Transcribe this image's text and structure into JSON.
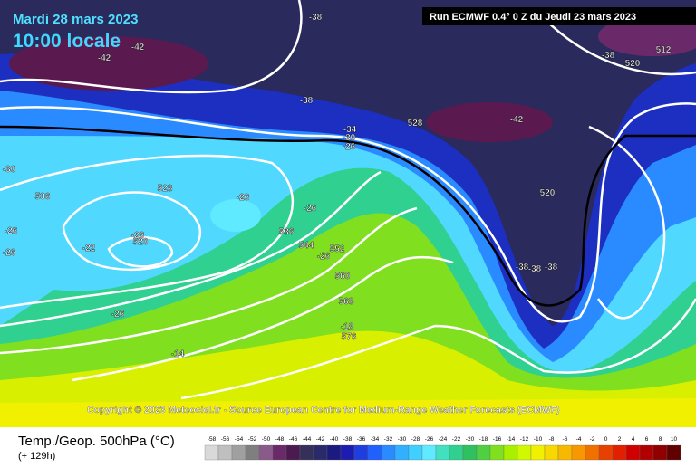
{
  "header": {
    "date": "Mardi 28 mars 2023",
    "time": "10:00 locale",
    "run": "Run ECMWF 0.4° 0 Z du Jeudi 23 mars 2023"
  },
  "copyright": "Copyright © 2023 Meteociel.fr - Source European Centre for Medium-Range Weather Forecasts (ECMWF)",
  "legend": {
    "title": "Temp./Geop. 500hPa (°C)",
    "lead": "(+ 129h)",
    "ticks": [
      -58,
      -56,
      -54,
      -52,
      -50,
      -48,
      -46,
      -44,
      -42,
      -40,
      -38,
      -36,
      -34,
      -32,
      -30,
      -28,
      -26,
      -24,
      -22,
      -20,
      -18,
      -16,
      -14,
      -12,
      -10,
      -8,
      -6,
      -4,
      -2,
      0,
      2,
      4,
      6,
      8,
      10
    ],
    "colors": [
      "#d9d9d9",
      "#bfbfbf",
      "#a0a0a0",
      "#7f7f7f",
      "#8a5a8a",
      "#6a2a6a",
      "#4a1a50",
      "#35305a",
      "#2a2a6a",
      "#1a1a80",
      "#1c1cb0",
      "#1e3ee0",
      "#2060ff",
      "#2a8aff",
      "#30b0ff",
      "#40d0ff",
      "#60eaff",
      "#40e0c0",
      "#30d090",
      "#30c060",
      "#50d040",
      "#80e020",
      "#a8f000",
      "#d0f800",
      "#f0f000",
      "#f8d800",
      "#f8b800",
      "#f89800",
      "#f07000",
      "#e84000",
      "#e02000",
      "#d00000",
      "#b00000",
      "#900000",
      "#600000"
    ]
  },
  "contour_labels": [
    "-38",
    "-42",
    "-42",
    "-38",
    "528",
    "-42",
    "520",
    "512",
    "-38",
    "-34",
    "-30",
    "-26",
    "-30",
    "536",
    "528",
    "-26",
    "-26",
    "520",
    "-26",
    "-22",
    "-26",
    "-26",
    "536",
    "544",
    "-26",
    "552",
    "560",
    "568",
    "-18",
    "576",
    "-38",
    "-38",
    "-38",
    "520",
    "-26",
    "-14"
  ]
}
